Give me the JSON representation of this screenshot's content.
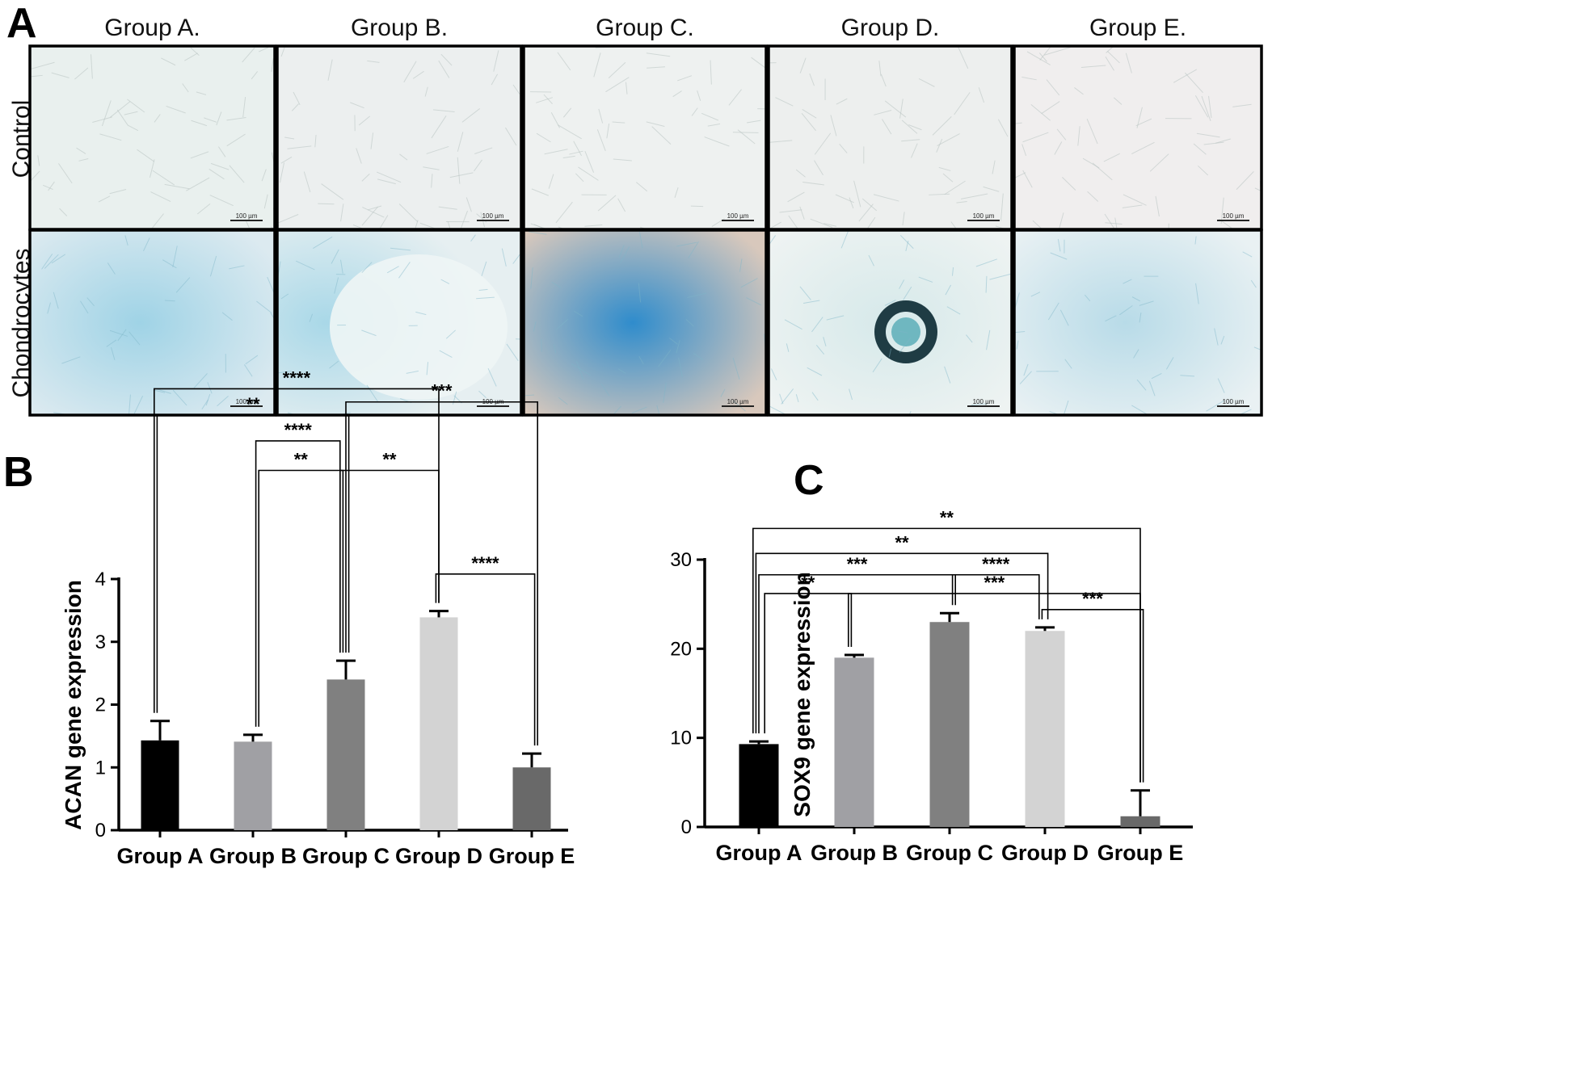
{
  "panel_a": {
    "letter": "A",
    "group_titles": [
      "Group A.",
      "Group B.",
      "Group C.",
      "Group D.",
      "Group E."
    ],
    "row_labels": [
      "Control",
      "Chondrocytes"
    ],
    "scale_bar_label": "100 µm",
    "colors": {
      "control_tint": [
        "#e9f0ee",
        "#ecefef",
        "#eef1f0",
        "#edefee",
        "#f0eeee"
      ],
      "stain_tint": [
        "#9fd3e6",
        "#a9d8e8",
        "#2f8ccc",
        "#d6e9ea",
        "#b8dbe8"
      ],
      "background_tint": [
        "#dceaf0",
        "#e6eff1",
        "#d8c8bc",
        "#eef3f2",
        "#e9f1f3"
      ]
    }
  },
  "chart_data": [
    {
      "letter": "B",
      "type": "bar",
      "ylabel": "ACAN  gene expression",
      "categories": [
        "Group A",
        "Group B",
        "Group C",
        "Group D",
        "Group E"
      ],
      "values": [
        1.43,
        1.41,
        2.4,
        3.39,
        1.0
      ],
      "errors": [
        0.31,
        0.11,
        0.3,
        0.1,
        0.22
      ],
      "ylim": [
        0,
        4
      ],
      "yticks": [
        0,
        1,
        2,
        3,
        4
      ],
      "colors": [
        "#000000",
        "#a0a0a4",
        "#808080",
        "#d3d3d3",
        "#696969"
      ],
      "significance": [
        {
          "i": 0,
          "j": 3,
          "label": "****",
          "y": 7.03
        },
        {
          "i": 0,
          "j": 2,
          "label": "**",
          "y": 6.61
        },
        {
          "i": 2,
          "j": 4,
          "label": "***",
          "y": 6.82
        },
        {
          "i": 1,
          "j": 2,
          "label": "****",
          "y": 6.2
        },
        {
          "i": 1,
          "j": 2,
          "label": "**",
          "y": 5.73
        },
        {
          "i": 2,
          "j": 3,
          "label": "**",
          "y": 5.73
        },
        {
          "i": 3,
          "j": 4,
          "label": "****",
          "y": 4.08
        }
      ]
    },
    {
      "letter": "C",
      "type": "bar",
      "ylabel": "SOX9 gene expression",
      "categories": [
        "Group A",
        "Group B",
        "Group C",
        "Group D",
        "Group E"
      ],
      "values": [
        9.3,
        19.0,
        23.0,
        22.0,
        1.2
      ],
      "errors": [
        0.3,
        0.3,
        1.0,
        0.4,
        2.9
      ],
      "ylim": [
        0,
        30
      ],
      "yticks": [
        0,
        10,
        20,
        30
      ],
      "colors": [
        "#000000",
        "#a0a0a4",
        "#808080",
        "#d3d3d3",
        "#696969"
      ],
      "significance": [
        {
          "i": 0,
          "j": 4,
          "label": "**",
          "y": 33.5
        },
        {
          "i": 0,
          "j": 3,
          "label": "**",
          "y": 30.7
        },
        {
          "i": 0,
          "j": 2,
          "label": "***",
          "y": 28.3
        },
        {
          "i": 2,
          "j": 3,
          "label": "****",
          "y": 28.3
        },
        {
          "i": 0,
          "j": 1,
          "label": "**",
          "y": 26.2
        },
        {
          "i": 1,
          "j": 4,
          "label": "***",
          "y": 26.2
        },
        {
          "i": 3,
          "j": 4,
          "label": "***",
          "y": 24.4
        }
      ]
    }
  ]
}
